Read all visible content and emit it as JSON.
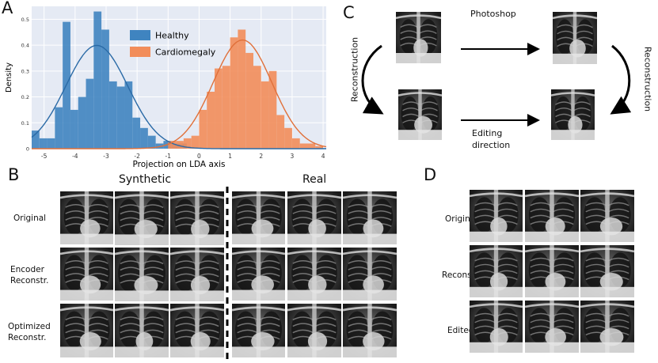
{
  "panels": {
    "A": {
      "letter": "A",
      "chart_data": {
        "type": "bar",
        "xlabel": "Projection on LDA axis",
        "ylabel": "Density",
        "xlim": [
          -5.4,
          4.1
        ],
        "ylim": [
          0,
          0.55
        ],
        "xticks": [
          "-5",
          "-4",
          "-3",
          "-2",
          "-1",
          "0",
          "1",
          "2",
          "3",
          "4"
        ],
        "xtick_values": [
          -5,
          -4,
          -3,
          -2,
          -1,
          0,
          1,
          2,
          3,
          4
        ],
        "yticks": [
          "0",
          "0.1",
          "0.2",
          "0.3",
          "0.4",
          "0.5"
        ],
        "ytick_values": [
          0,
          0.1,
          0.2,
          0.3,
          0.4,
          0.5
        ],
        "legend_position": "top-center",
        "grid": true,
        "bin_width": 0.25,
        "series": [
          {
            "name": "Healthy",
            "color": "#3f84c0",
            "bins_start": [
              -5.4,
              -5.15,
              -4.9,
              -4.65,
              -4.4,
              -4.15,
              -3.9,
              -3.65,
              -3.4,
              -3.15,
              -2.9,
              -2.65,
              -2.4,
              -2.15,
              -1.9,
              -1.65,
              -1.4,
              -1.15,
              -0.9,
              -0.65
            ],
            "density": [
              0.07,
              0.04,
              0.04,
              0.16,
              0.49,
              0.15,
              0.2,
              0.27,
              0.53,
              0.46,
              0.26,
              0.24,
              0.26,
              0.12,
              0.08,
              0.05,
              0.02,
              0.03,
              0.02,
              0.02
            ],
            "curve_mean": -3.3,
            "curve_sd": 1.0
          },
          {
            "name": "Cardiomegaly",
            "color": "#f28d5a",
            "bins_start": [
              -1.0,
              -0.75,
              -0.5,
              -0.25,
              0.0,
              0.25,
              0.5,
              0.75,
              1.0,
              1.25,
              1.5,
              1.75,
              2.0,
              2.25,
              2.5,
              2.75,
              3.0,
              3.25,
              3.5,
              3.75
            ],
            "density": [
              0.03,
              0.03,
              0.04,
              0.05,
              0.15,
              0.22,
              0.31,
              0.32,
              0.43,
              0.46,
              0.37,
              0.32,
              0.26,
              0.3,
              0.13,
              0.08,
              0.04,
              0.02,
              0.02,
              0.01
            ],
            "curve_mean": 1.4,
            "curve_sd": 0.95
          }
        ]
      }
    },
    "B": {
      "letter": "B",
      "synthetic_label": "Synthetic",
      "real_label": "Real",
      "row_labels": [
        {
          "l1": "Original",
          "l2": ""
        },
        {
          "l1": "Encoder",
          "l2": "Reconstr."
        },
        {
          "l1": "Optimized",
          "l2": "Reconstr."
        }
      ]
    },
    "C": {
      "letter": "C",
      "top_label": "Photoshop",
      "bottom_label_1": "Editing",
      "bottom_label_2": "direction",
      "left_label": "Reconstruction",
      "right_label": "Reconstruction"
    },
    "D": {
      "letter": "D",
      "row_labels": [
        "Original",
        "Reconstr.",
        "Edited"
      ]
    }
  }
}
